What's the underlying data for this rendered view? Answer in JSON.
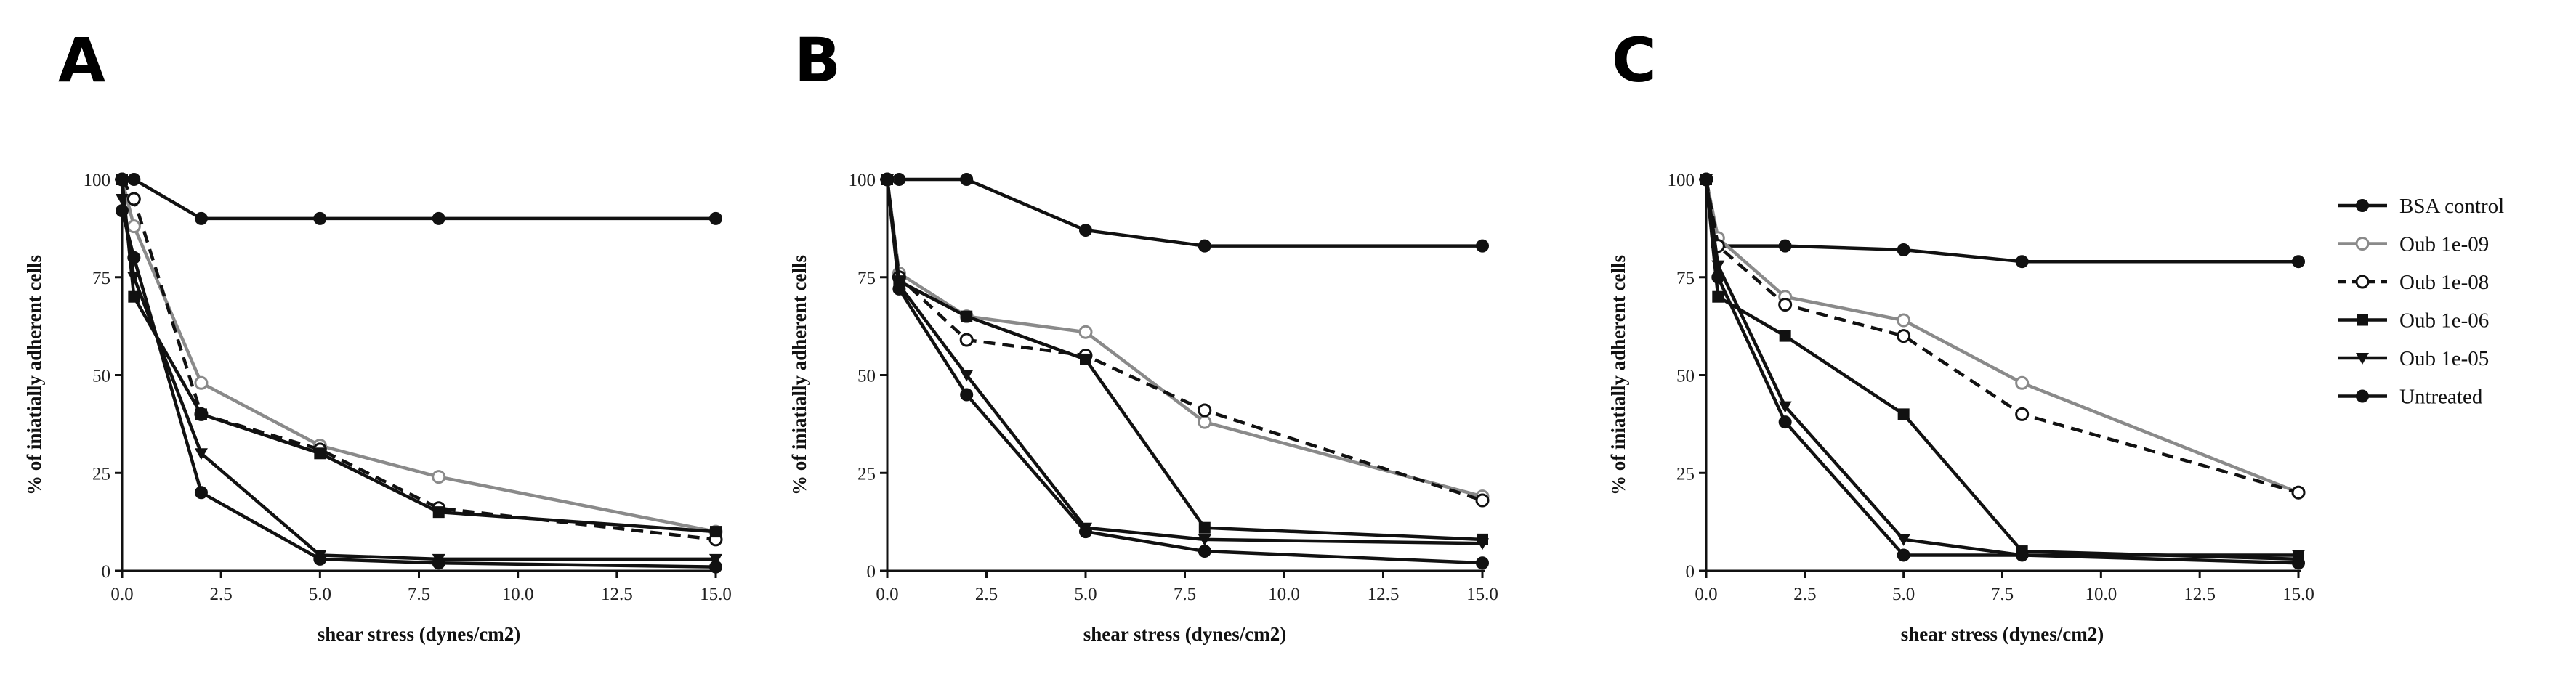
{
  "legend": [
    {
      "name": "BSA control",
      "color": "#111111",
      "dashed": false,
      "marker": "circle-filled"
    },
    {
      "name": "Oub 1e-09",
      "color": "#8a8a8a",
      "dashed": false,
      "marker": "circle-open"
    },
    {
      "name": "Oub 1e-08",
      "color": "#111111",
      "dashed": true,
      "marker": "circle-open"
    },
    {
      "name": "Oub 1e-06",
      "color": "#111111",
      "dashed": false,
      "marker": "square-filled"
    },
    {
      "name": "Oub 1e-05",
      "color": "#111111",
      "dashed": false,
      "marker": "triangle-down"
    },
    {
      "name": "Untreated",
      "color": "#111111",
      "dashed": false,
      "marker": "circle-filled"
    }
  ],
  "chart_data": [
    {
      "panel": "A",
      "type": "line",
      "xlabel": "shear stress (dynes/cm2)",
      "ylabel": "% of iniatially adherent cells",
      "xlim": [
        0,
        15
      ],
      "ylim": [
        0,
        100
      ],
      "xticks": [
        "0.0",
        "2.5",
        "5.0",
        "7.5",
        "10.0",
        "12.5",
        "15.0"
      ],
      "yticks": [
        "0",
        "25",
        "50",
        "75",
        "100"
      ],
      "series": [
        {
          "name": "BSA control",
          "x": [
            0,
            0.3,
            2,
            5,
            8,
            15
          ],
          "y": [
            100,
            100,
            90,
            90,
            90,
            90
          ]
        },
        {
          "name": "Oub 1e-09",
          "x": [
            0,
            0.3,
            2,
            5,
            8,
            15
          ],
          "y": [
            100,
            88,
            48,
            32,
            24,
            10
          ]
        },
        {
          "name": "Oub 1e-08",
          "x": [
            0,
            0.3,
            2,
            5,
            8,
            15
          ],
          "y": [
            100,
            95,
            40,
            31,
            16,
            8
          ]
        },
        {
          "name": "Oub 1e-06",
          "x": [
            0,
            0.3,
            2,
            5,
            8,
            15
          ],
          "y": [
            100,
            70,
            40,
            30,
            15,
            10
          ]
        },
        {
          "name": "Oub 1e-05",
          "x": [
            0,
            0.3,
            2,
            5,
            8,
            15
          ],
          "y": [
            95,
            75,
            30,
            4,
            3,
            3
          ]
        },
        {
          "name": "Untreated",
          "x": [
            0,
            0.3,
            2,
            5,
            8,
            15
          ],
          "y": [
            92,
            80,
            20,
            3,
            2,
            1
          ]
        }
      ]
    },
    {
      "panel": "B",
      "type": "line",
      "xlabel": "shear stress (dynes/cm2)",
      "ylabel": "% of iniatially adherent cells",
      "xlim": [
        0,
        15
      ],
      "ylim": [
        0,
        100
      ],
      "xticks": [
        "0.0",
        "2.5",
        "5.0",
        "7.5",
        "10.0",
        "12.5",
        "15.0"
      ],
      "yticks": [
        "0",
        "25",
        "50",
        "75",
        "100"
      ],
      "series": [
        {
          "name": "BSA control",
          "x": [
            0,
            0.3,
            2,
            5,
            8,
            15
          ],
          "y": [
            100,
            100,
            100,
            87,
            83,
            83
          ]
        },
        {
          "name": "Oub 1e-09",
          "x": [
            0,
            0.3,
            2,
            5,
            8,
            15
          ],
          "y": [
            100,
            76,
            65,
            61,
            38,
            19
          ]
        },
        {
          "name": "Oub 1e-08",
          "x": [
            0,
            0.3,
            2,
            5,
            8,
            15
          ],
          "y": [
            100,
            75,
            59,
            55,
            41,
            18
          ]
        },
        {
          "name": "Oub 1e-06",
          "x": [
            0,
            0.3,
            2,
            5,
            8,
            15
          ],
          "y": [
            100,
            74,
            65,
            54,
            11,
            8
          ]
        },
        {
          "name": "Oub 1e-05",
          "x": [
            0,
            0.3,
            2,
            5,
            8,
            15
          ],
          "y": [
            100,
            73,
            50,
            11,
            8,
            7
          ]
        },
        {
          "name": "Untreated",
          "x": [
            0,
            0.3,
            2,
            5,
            8,
            15
          ],
          "y": [
            100,
            72,
            45,
            10,
            5,
            2
          ]
        }
      ]
    },
    {
      "panel": "C",
      "type": "line",
      "xlabel": "shear stress (dynes/cm2)",
      "ylabel": "% of iniatially adherent cells",
      "xlim": [
        0,
        15
      ],
      "ylim": [
        0,
        100
      ],
      "xticks": [
        "0.0",
        "2.5",
        "5.0",
        "7.5",
        "10.0",
        "12.5",
        "15.0"
      ],
      "yticks": [
        "0",
        "25",
        "50",
        "75",
        "100"
      ],
      "series": [
        {
          "name": "BSA control",
          "x": [
            0,
            0.3,
            2,
            5,
            8,
            15
          ],
          "y": [
            100,
            83,
            83,
            82,
            79,
            79
          ]
        },
        {
          "name": "Oub 1e-09",
          "x": [
            0,
            0.3,
            2,
            5,
            8,
            15
          ],
          "y": [
            100,
            85,
            70,
            64,
            48,
            20
          ]
        },
        {
          "name": "Oub 1e-08",
          "x": [
            0,
            0.3,
            2,
            5,
            8,
            15
          ],
          "y": [
            100,
            83,
            68,
            60,
            40,
            20
          ]
        },
        {
          "name": "Oub 1e-06",
          "x": [
            0,
            0.3,
            2,
            5,
            8,
            15
          ],
          "y": [
            100,
            70,
            60,
            40,
            5,
            3
          ]
        },
        {
          "name": "Oub 1e-05",
          "x": [
            0,
            0.3,
            2,
            5,
            8,
            15
          ],
          "y": [
            100,
            78,
            42,
            8,
            4,
            4
          ]
        },
        {
          "name": "Untreated",
          "x": [
            0,
            0.3,
            2,
            5,
            8,
            15
          ],
          "y": [
            100,
            75,
            38,
            4,
            4,
            2
          ]
        }
      ]
    }
  ]
}
